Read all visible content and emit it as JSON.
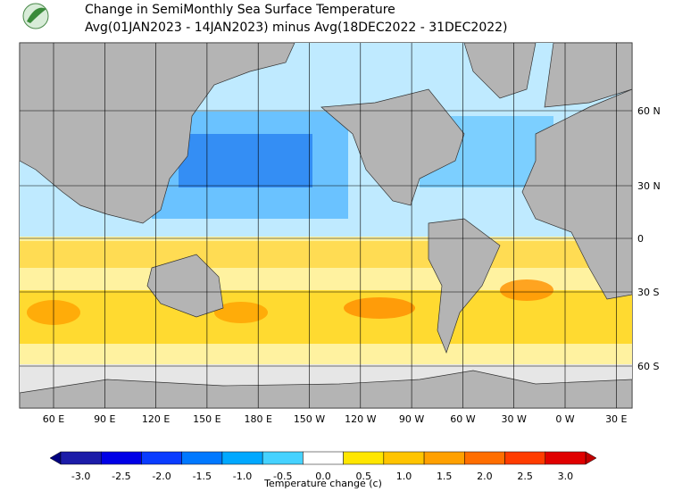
{
  "header": {
    "title": "Change in SemiMonthly Sea Surface Temperature",
    "subtitle": "Avg(01JAN2023 - 14JAN2023) minus Avg(18DEC2022 - 31DEC2022)"
  },
  "map": {
    "longitude_labels": [
      "60 E",
      "90 E",
      "120 E",
      "150 E",
      "180 E",
      "150 W",
      "120 W",
      "90 W",
      "60 W",
      "30 W",
      "0 W",
      "30 E"
    ],
    "latitude_labels": [
      "60 N",
      "30 N",
      "0",
      "30 S",
      "60 S"
    ]
  },
  "colorbar": {
    "label": "Temperature change (c)",
    "ticks": [
      {
        "value": -3,
        "label": "-3.0"
      },
      {
        "value": -2.5,
        "label": "-2.5"
      },
      {
        "value": -2,
        "label": "-2.0"
      },
      {
        "value": -1.5,
        "label": "-1.5"
      },
      {
        "value": -1,
        "label": "-1.0"
      },
      {
        "value": -0.5,
        "label": "-0.5"
      },
      {
        "value": 0,
        "label": "0.0"
      },
      {
        "value": 0.5,
        "label": "0.5"
      },
      {
        "value": 1,
        "label": "1.0"
      },
      {
        "value": 1.5,
        "label": "1.5"
      },
      {
        "value": 2,
        "label": "2.0"
      },
      {
        "value": 2.5,
        "label": "2.5"
      },
      {
        "value": 3,
        "label": "3.0"
      }
    ],
    "colors": [
      "#1c1ca8",
      "#0000e6",
      "#0a3cff",
      "#0078ff",
      "#00a8ff",
      "#46d2ff",
      "#ffffff",
      "#ffe600",
      "#ffc400",
      "#ffa000",
      "#ff6e00",
      "#ff3c00",
      "#e00000"
    ],
    "under_color": "#000080",
    "over_color": "#c00000"
  }
}
